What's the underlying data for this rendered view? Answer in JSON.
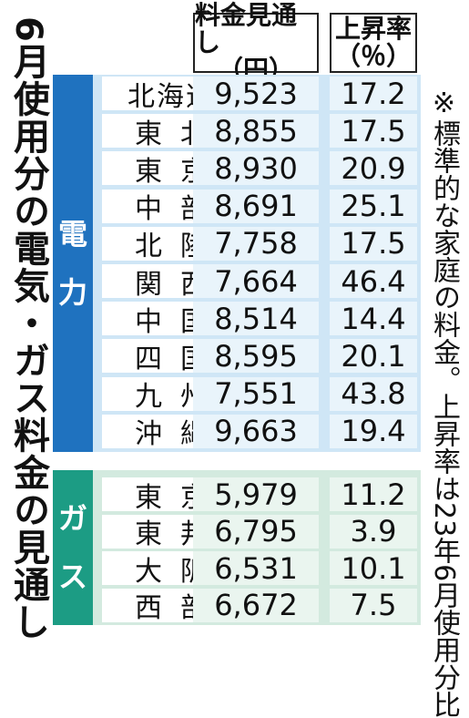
{
  "title": "6月使用分の電気・ガス料金の見通し",
  "note": "※標準的な家庭の料金。上昇率は23年6月使用分比",
  "headers": {
    "price": [
      "料金見通し",
      "（円）"
    ],
    "rate": [
      "上昇率",
      "（％）"
    ]
  },
  "electricity": {
    "label": [
      "電",
      "力"
    ],
    "rows": [
      {
        "region": "北海道",
        "price": "9,523",
        "rate": "17.2"
      },
      {
        "region": "東北",
        "price": "8,855",
        "rate": "17.5"
      },
      {
        "region": "東京",
        "price": "8,930",
        "rate": "20.9"
      },
      {
        "region": "中部",
        "price": "8,691",
        "rate": "25.1"
      },
      {
        "region": "北陸",
        "price": "7,758",
        "rate": "17.5"
      },
      {
        "region": "関西",
        "price": "7,664",
        "rate": "46.4"
      },
      {
        "region": "中国",
        "price": "8,514",
        "rate": "14.4"
      },
      {
        "region": "四国",
        "price": "8,595",
        "rate": "20.1"
      },
      {
        "region": "九州",
        "price": "7,551",
        "rate": "43.8"
      },
      {
        "region": "沖縄",
        "price": "9,663",
        "rate": "19.4"
      }
    ]
  },
  "gas": {
    "label": [
      "ガ",
      "ス"
    ],
    "rows": [
      {
        "region": "東京",
        "price": "5,979",
        "rate": "11.2"
      },
      {
        "region": "東邦",
        "price": "6,795",
        "rate": "3.9"
      },
      {
        "region": "大阪",
        "price": "6,531",
        "rate": "10.1"
      },
      {
        "region": "西部",
        "price": "6,672",
        "rate": "7.5"
      }
    ]
  }
}
